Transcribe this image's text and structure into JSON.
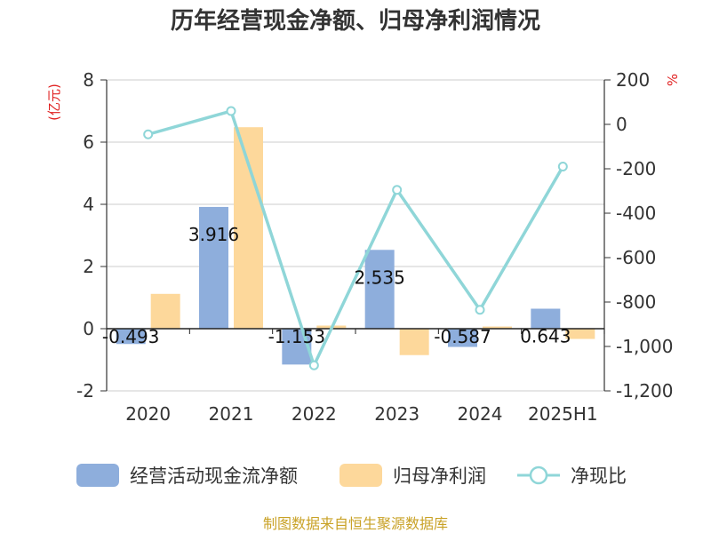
{
  "chart_data": {
    "type": "bar",
    "title": "历年经营现金净额、归母净利润情况",
    "categories": [
      "2020",
      "2021",
      "2022",
      "2023",
      "2024",
      "2025H1"
    ],
    "left_axis": {
      "unit_label": "(亿元)",
      "ylim": [
        -2,
        8
      ],
      "ticks": [
        "-2",
        "0",
        "2",
        "4",
        "6",
        "8"
      ]
    },
    "right_axis": {
      "unit_label": "%",
      "ylim": [
        -1200,
        200
      ],
      "ticks": [
        "-1,200",
        "-1,000",
        "-800",
        "-600",
        "-400",
        "-200",
        "0",
        "200"
      ]
    },
    "series": [
      {
        "name": "经营活动现金流净额",
        "type": "bar",
        "axis": "left",
        "color": "#8eaedc",
        "values": [
          -0.493,
          3.916,
          -1.153,
          2.535,
          -0.587,
          0.643
        ],
        "labels": [
          "-0.493",
          "3.916",
          "-1.153",
          "2.535",
          "-0.587",
          "0.643"
        ]
      },
      {
        "name": "归母净利润",
        "type": "bar",
        "axis": "left",
        "color": "#fdd89b",
        "values": [
          1.12,
          6.48,
          0.1,
          -0.85,
          0.07,
          -0.33
        ]
      },
      {
        "name": "净现比",
        "type": "line",
        "axis": "right",
        "color": "#8fd6d8",
        "values": [
          -45,
          60,
          -1085,
          -295,
          -835,
          -190
        ]
      }
    ],
    "grid": true,
    "legend_position": "bottom"
  },
  "footer": {
    "source": "制图数据来自恒生聚源数据库",
    "source_color": "#c9a227"
  }
}
